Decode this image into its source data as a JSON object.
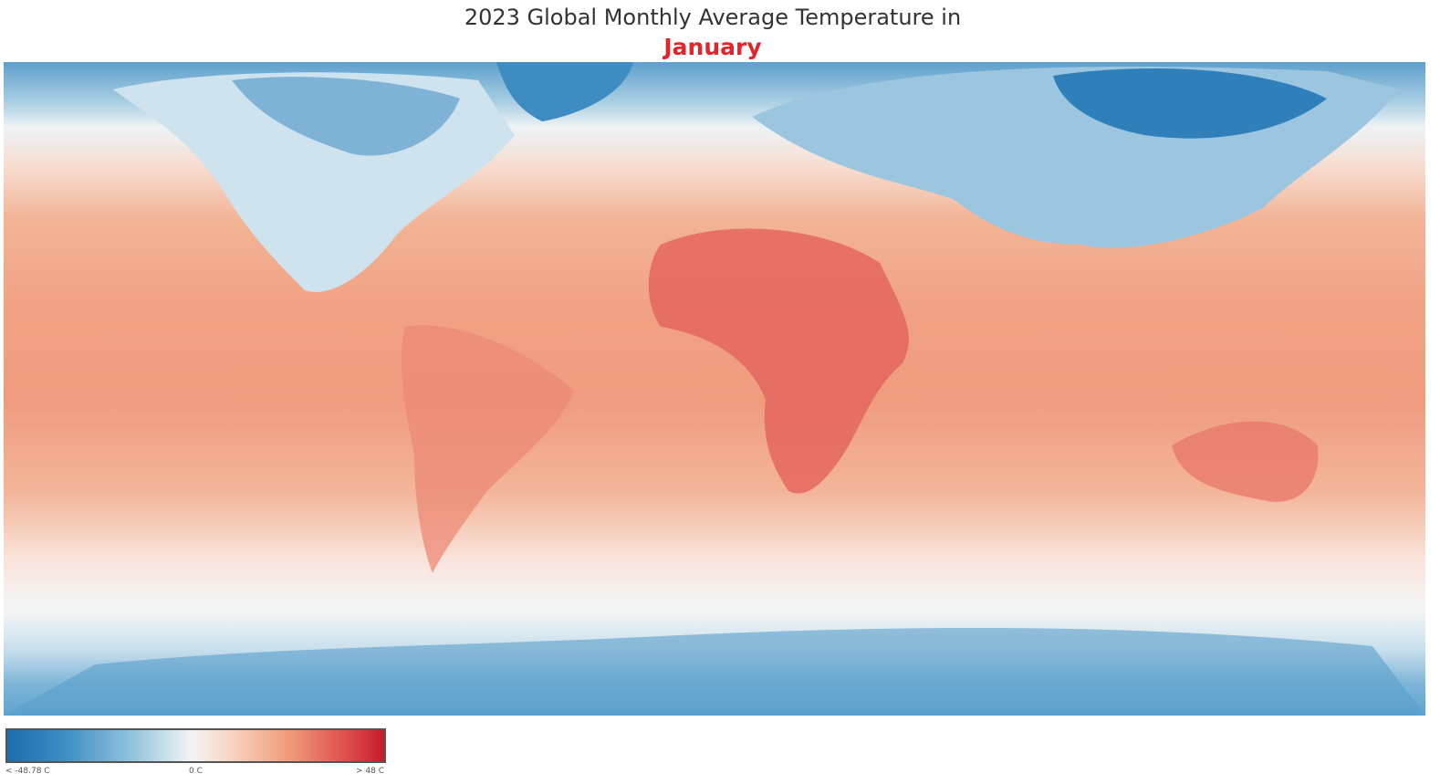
{
  "title": "2023 Global Monthly Average Temperature in",
  "month": "January",
  "colors": {
    "month_highlight": "#e0262b",
    "cold": "#1a6fae",
    "neutral": "#f4f4f4",
    "hot": "#c81b2c"
  },
  "legend": {
    "min_label": "< -48.78 C",
    "mid_label": "0 C",
    "max_label": "> 48 C",
    "min_value": -48.78,
    "mid_value": 0,
    "max_value": 48,
    "unit": "C"
  }
}
